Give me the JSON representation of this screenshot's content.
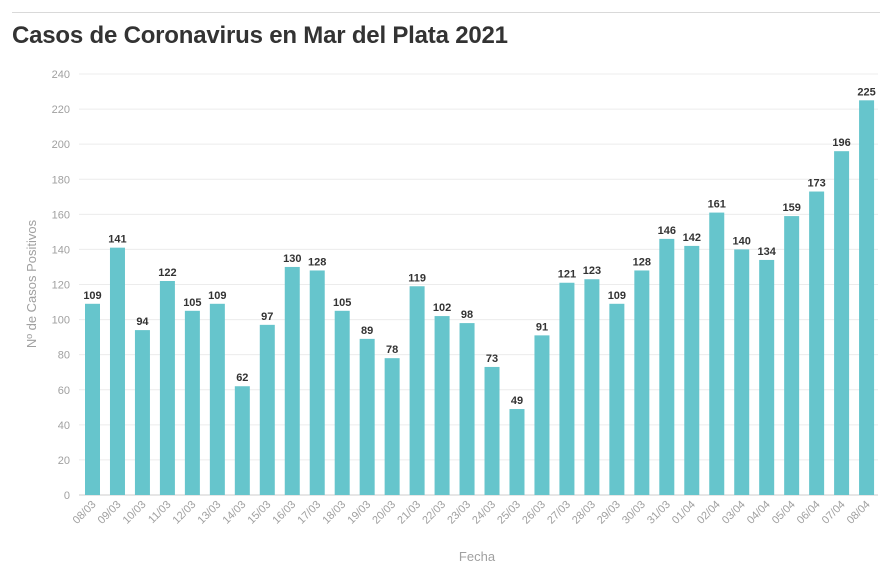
{
  "title": "Casos de Coronavirus en Mar del Plata 2021",
  "chart_data": {
    "type": "bar",
    "title": "Casos de Coronavirus en Mar del Plata 2021",
    "xlabel": "Fecha",
    "ylabel": "Nº de Casos Positivos",
    "ylim": [
      0,
      240
    ],
    "yticks": [
      0,
      20,
      40,
      60,
      80,
      100,
      120,
      140,
      160,
      180,
      200,
      220,
      240
    ],
    "grid": true,
    "color": "#66c5cc",
    "categories": [
      "08/03",
      "09/03",
      "10/03",
      "11/03",
      "12/03",
      "13/03",
      "14/03",
      "15/03",
      "16/03",
      "17/03",
      "18/03",
      "19/03",
      "20/03",
      "21/03",
      "22/03",
      "23/03",
      "24/03",
      "25/03",
      "26/03",
      "27/03",
      "28/03",
      "29/03",
      "30/03",
      "31/03",
      "01/04",
      "02/04",
      "03/04",
      "04/04",
      "05/04",
      "06/04",
      "07/04",
      "08/04"
    ],
    "values": [
      109,
      141,
      94,
      122,
      105,
      109,
      62,
      97,
      130,
      128,
      105,
      89,
      78,
      119,
      102,
      98,
      73,
      49,
      91,
      121,
      123,
      109,
      128,
      146,
      142,
      161,
      140,
      134,
      159,
      173,
      196,
      225
    ]
  }
}
